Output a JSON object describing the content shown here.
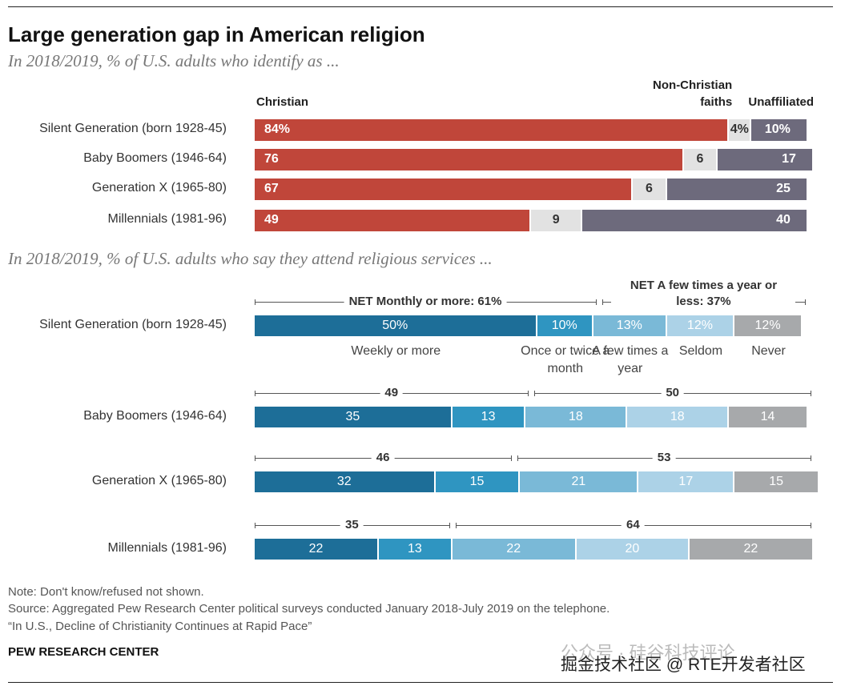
{
  "title": "Large generation gap in American religion",
  "chart_data": [
    {
      "type": "stacked-bar",
      "subtitle": "In 2018/2019, % of U.S. adults who identify as ...",
      "categories": [
        "Silent Generation (born 1928-45)",
        "Baby Boomers (1946-64)",
        "Generation X (1965-80)",
        "Millennials (1981-96)"
      ],
      "xlim": [
        0,
        100
      ],
      "series": [
        {
          "name": "Christian",
          "color": "#c0463a",
          "text_color": "#ffffff",
          "values": [
            84,
            76,
            67,
            49
          ],
          "value_labels": [
            "84%",
            "76",
            "67",
            "49"
          ]
        },
        {
          "name": "Non-Christian faiths",
          "color": "#e2e2e2",
          "text_color": "#333333",
          "values": [
            4,
            6,
            6,
            9
          ],
          "value_labels": [
            "4%",
            "6",
            "6",
            "9"
          ]
        },
        {
          "name": "Unaffiliated",
          "color": "#6d6a7c",
          "text_color": "#ffffff",
          "values": [
            10,
            17,
            25,
            40
          ],
          "value_labels": [
            "10%",
            "17",
            "25",
            "40"
          ]
        }
      ]
    },
    {
      "type": "stacked-bar",
      "subtitle": "In 2018/2019, % of U.S. adults who say they attend religious services ...",
      "categories": [
        "Silent Generation (born 1928-45)",
        "Baby Boomers (1946-64)",
        "Generation X (1965-80)",
        "Millennials (1981-96)"
      ],
      "xlim": [
        0,
        100
      ],
      "series": [
        {
          "name": "Weekly or more",
          "color": "#1d6e98",
          "values": [
            50,
            35,
            32,
            22
          ],
          "value_labels": [
            "50%",
            "35",
            "32",
            "22"
          ]
        },
        {
          "name": "Once or twice a month",
          "color": "#2f95c1",
          "values": [
            10,
            13,
            15,
            13
          ],
          "value_labels": [
            "10%",
            "13",
            "15",
            "13"
          ]
        },
        {
          "name": "A few times a year",
          "color": "#7ab9d7",
          "values": [
            13,
            18,
            21,
            22
          ],
          "value_labels": [
            "13%",
            "18",
            "21",
            "22"
          ]
        },
        {
          "name": "Seldom",
          "color": "#acd2e7",
          "values": [
            12,
            18,
            17,
            20
          ],
          "value_labels": [
            "12%",
            "18",
            "17",
            "20"
          ]
        },
        {
          "name": "Never",
          "color": "#a7a9ab",
          "values": [
            12,
            14,
            15,
            22
          ],
          "value_labels": [
            "12%",
            "14",
            "15",
            "22"
          ]
        }
      ],
      "nets": [
        {
          "values": [
            61,
            49,
            46,
            35
          ],
          "value_labels": [
            "NET Monthly or more: 61%",
            "49",
            "46",
            "35"
          ]
        },
        {
          "values": [
            37,
            50,
            53,
            64
          ],
          "value_labels": [
            "NET A few times a year or less: 37%",
            "50",
            "53",
            "64"
          ]
        }
      ]
    }
  ],
  "notes": [
    "Note: Don't know/refused not shown.",
    "Source: Aggregated Pew Research Center political surveys conducted January 2018-July 2019 on the telephone.",
    "“In U.S., Decline of Christianity Continues at Rapid Pace”"
  ],
  "footer": "PEW RESEARCH CENTER",
  "watermark": [
    "公众号 · 硅谷科技评论",
    "掘金技术社区 @ RTE开发者社区"
  ]
}
